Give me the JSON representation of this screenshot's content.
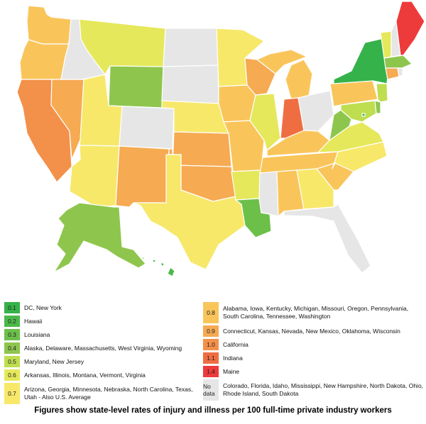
{
  "colors": {
    "0.1": "#35b24a",
    "0.3": "#6cc04a",
    "0.4": "#8ec64d",
    "0.5": "#bedd4f",
    "0.6": "#e5e85a",
    "0.7": "#f7e86a",
    "0.8": "#f9c55b",
    "0.9": "#f6aa52",
    "1.0": "#f39049",
    "1.1": "#ef6e41",
    "1.4": "#ed3a3b",
    "nodata": "#e6e6e6"
  },
  "legend_left": [
    {
      "value": "0.1",
      "label": "DC, New York"
    },
    {
      "value": "0.2",
      "label": "Hawaii",
      "color": "#4bb84a"
    },
    {
      "value": "0.3",
      "label": "Louisiana"
    },
    {
      "value": "0.4",
      "label": "Alaska, Delaware, Massachusetts, West Virginia, Wyoming"
    },
    {
      "value": "0.5",
      "label": "Maryland, New Jersey"
    },
    {
      "value": "0.6",
      "label": "Arkansas, Illinois, Montana, Vermont, Virginia"
    },
    {
      "value": "0.7",
      "label": "Arizona, Georgia, Minnesota, Nebraska, North Carolina, Texas, Utah - Also U.S. Average",
      "tall": true
    }
  ],
  "legend_right": [
    {
      "value": "0.8",
      "label": "Alabama, Iowa, Kentucky, Michigan, Missouri, Oregon, Pennsylvania, South Carolina, Tennessee, Washington",
      "tall": true
    },
    {
      "value": "0.9",
      "label": "Connecticut, Kansas, Nevada, New Mexico, Oklahoma, Wisconsin"
    },
    {
      "value": "1.0",
      "label": "California"
    },
    {
      "value": "1.1",
      "label": "Indiana"
    },
    {
      "value": "1.4",
      "label": "Maine"
    },
    {
      "value": "No data",
      "label": "Colorado, Florida, Idaho, Mississippi, New Hampshire, North Dakota, Ohio, Rhode Island, South Dakota",
      "tall": true,
      "nodata": true
    }
  ],
  "caption": "Figures show state-level rates of injury and illness per 100 full-time private industry workers"
}
